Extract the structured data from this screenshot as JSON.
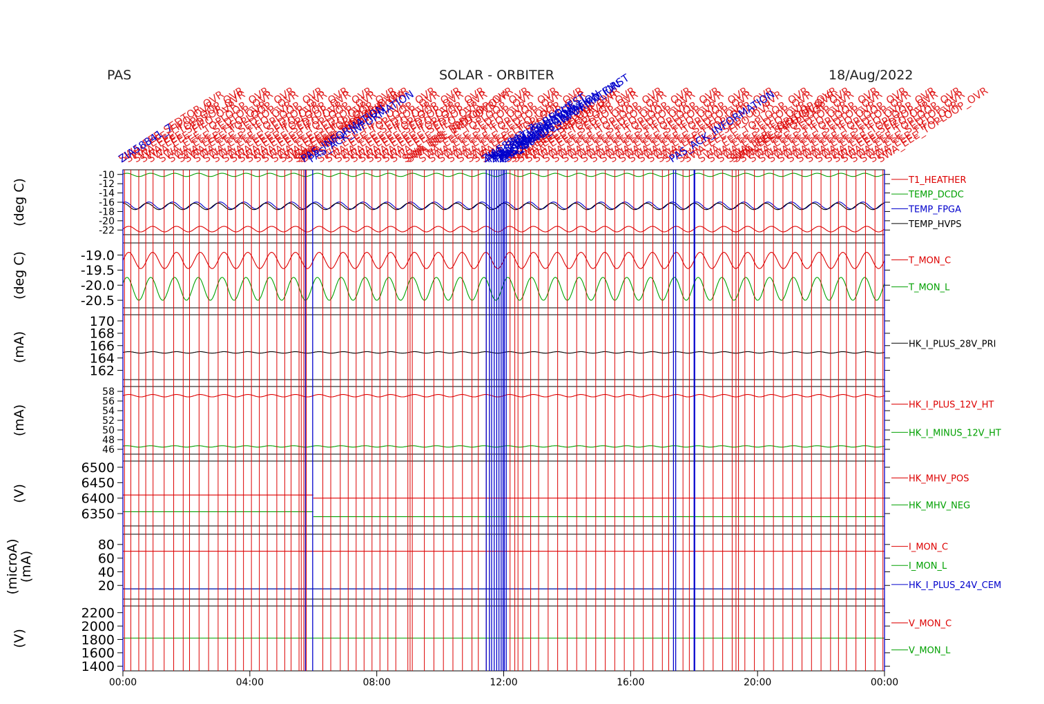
{
  "header": {
    "left": "PAS",
    "center": "SOLAR - ORBITER",
    "right": "18/Aug/2022"
  },
  "colors": {
    "red": "#dd0000",
    "green": "#00a000",
    "blue": "#0000cc",
    "black": "#000000",
    "navy": "#00005a"
  },
  "chart_data": {
    "type": "line",
    "x_axis": {
      "ticks": [
        "00:00",
        "04:00",
        "08:00",
        "12:00",
        "16:00",
        "20:00",
        "00:00"
      ],
      "range_hours": [
        0,
        24
      ]
    },
    "event_markers": {
      "red_hours": [
        0.05,
        0.25,
        0.5,
        0.72,
        0.95,
        1.3,
        1.6,
        1.9,
        2.1,
        2.4,
        2.7,
        3.0,
        3.3,
        3.55,
        3.8,
        4.05,
        4.3,
        4.55,
        4.85,
        5.1,
        5.3,
        5.55,
        5.62,
        5.7,
        5.78,
        6.3,
        6.55,
        6.85,
        7.1,
        7.35,
        7.6,
        7.85,
        8.1,
        8.35,
        8.6,
        8.98,
        9.05,
        9.12,
        9.5,
        9.8,
        10.1,
        10.4,
        10.7,
        11.0,
        11.2,
        11.45,
        12.2,
        12.35,
        12.45,
        12.6,
        12.85,
        13.1,
        13.4,
        13.7,
        14.0,
        14.3,
        14.6,
        14.9,
        15.2,
        15.5,
        15.8,
        16.1,
        16.4,
        16.7,
        17.0,
        17.2,
        17.65,
        17.85,
        18.3,
        18.6,
        18.9,
        19.2,
        19.32,
        19.4,
        19.6,
        19.9,
        20.2,
        20.5,
        20.8,
        21.1,
        21.4,
        21.7,
        22.0,
        22.3,
        22.55,
        22.8,
        23.1,
        23.4,
        23.7,
        23.95
      ],
      "blue_hours": [
        0.0,
        5.75,
        5.98,
        11.45,
        11.55,
        11.62,
        11.7,
        11.78,
        11.85,
        11.92,
        11.98,
        12.02,
        12.08,
        17.35,
        17.42,
        18.0,
        18.02,
        24.0
      ]
    },
    "event_labels": {
      "blue": [
        "ZIA58841_7",
        "PAS_INFORMATION",
        "PAS_ACK_INFORMATION",
        "ZIA58841_7",
        "PAS_STATUS_REQUEST",
        "PAS_ACK_CONNECT",
        "ZIA58841_7",
        "PAS_INFORMATION",
        "PAS_ACK_INFORMATION",
        "ZIA58841_7",
        "PAS_ERROR_SWAPFIFO_FIRST",
        "PAS_STATUS_INFORMATION",
        "ZIA58841_7",
        "PAS_ACK_INFORMATION"
      ],
      "red": [
        "SWA_EEE_SEDTOP_OVR",
        "SWA_EEE_FIFO_OVR",
        "SWA_EEE_TOPLOOP_OVR",
        "SWA_EEE_SEDTOP_OVR",
        "SWA_EEE_FIFO_OVR",
        "SWA_EEE_TOPLOOP_OVR"
      ]
    },
    "panels": [
      {
        "ylabel": "(deg C)",
        "ticks": [
          "-10",
          "-12",
          "-14",
          "-16",
          "-18",
          "-20",
          "-22"
        ],
        "ylim": [
          -23,
          -9
        ],
        "series": [
          {
            "name": "T1_HEATHER",
            "color": "red",
            "mean": -21.8,
            "amp": 0.6,
            "period_h": 0.75
          },
          {
            "name": "TEMP_DCDC",
            "color": "green",
            "mean": -10.1,
            "amp": 0.35,
            "period_h": 0.75
          },
          {
            "name": "TEMP_FPGA",
            "color": "blue",
            "mean": -16.7,
            "amp": 0.75,
            "period_h": 0.75
          },
          {
            "name": "TEMP_HVPS",
            "color": "black",
            "mean": -16.9,
            "amp": 0.7,
            "period_h": 0.75
          }
        ]
      },
      {
        "ylabel": "(deg C)",
        "ticks": [
          "-19.0",
          "-19.5",
          "-20.0",
          "-20.5"
        ],
        "ylim": [
          -20.75,
          -18.6
        ],
        "series": [
          {
            "name": "T_MON_C",
            "color": "red",
            "mean": -19.18,
            "amp": 0.27,
            "period_h": 0.75
          },
          {
            "name": "T_MON_L",
            "color": "green",
            "mean": -20.12,
            "amp": 0.38,
            "period_h": 0.75
          }
        ]
      },
      {
        "ylabel": "(mA)",
        "ticks": [
          "170",
          "168",
          "166",
          "164",
          "162"
        ],
        "ylim": [
          160.5,
          171
        ],
        "series": [
          {
            "name": "HK_I_PLUS_28V_PRI",
            "color": "black",
            "mean": 164.9,
            "amp": 0.12,
            "period_h": 0.75
          }
        ]
      },
      {
        "ylabel": "(mA)",
        "ticks": [
          "58",
          "56",
          "54",
          "52",
          "50",
          "48",
          "46"
        ],
        "ylim": [
          45,
          59
        ],
        "series": [
          {
            "name": "HK_I_PLUS_12V_HT",
            "color": "red",
            "mean": 57.1,
            "amp": 0.25,
            "period_h": 0.75
          },
          {
            "name": "HK_I_MINUS_12V_HT",
            "color": "green",
            "mean": 46.6,
            "amp": 0.15,
            "period_h": 0.75
          }
        ]
      },
      {
        "ylabel": "(V)",
        "ticks": [
          "6500",
          "6450",
          "6400",
          "6350"
        ],
        "ylim": [
          6310,
          6520
        ],
        "series": [
          {
            "name": "HK_MHV_POS",
            "color": "red",
            "segments": [
              [
                0,
                6.0,
                6410
              ],
              [
                6.0,
                24,
                6400
              ]
            ]
          },
          {
            "name": "HK_MHV_NEG",
            "color": "green",
            "segments": [
              [
                0,
                6.0,
                6356
              ],
              [
                6.0,
                24,
                6340
              ]
            ]
          }
        ]
      },
      {
        "ylabel": "(microA)\n(mA)",
        "ticks": [
          "80",
          "60",
          "40",
          "20"
        ],
        "ylim": [
          0,
          95
        ],
        "series": [
          {
            "name": "I_MON_C",
            "color": "red",
            "segments": [
              [
                0,
                24,
                70
              ]
            ]
          },
          {
            "name": "I_MON_L",
            "color": "green",
            "segments": [
              [
                0,
                24,
                15
              ]
            ]
          },
          {
            "name": "HK_I_PLUS_24V_CEM",
            "color": "blue",
            "segments": [
              [
                0,
                24,
                15
              ]
            ]
          }
        ]
      },
      {
        "ylabel": "(V)",
        "ticks": [
          "2200",
          "2000",
          "1800",
          "1600",
          "1400"
        ],
        "ylim": [
          1330,
          2300
        ],
        "series": [
          {
            "name": "V_MON_C",
            "color": "red",
            "segments": []
          },
          {
            "name": "V_MON_L",
            "color": "green",
            "segments": [
              [
                0,
                24,
                1820
              ]
            ]
          }
        ]
      }
    ]
  }
}
